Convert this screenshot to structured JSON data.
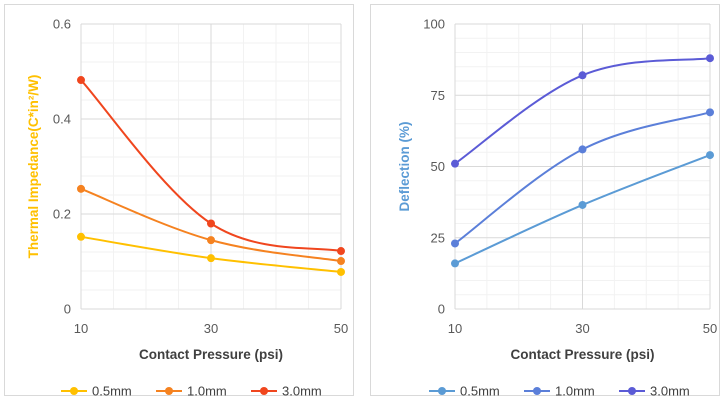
{
  "chart_data": [
    {
      "type": "line",
      "xlabel": "Contact Pressure (psi)",
      "ylabel": "Thermal Impedance(C*in²/W)",
      "ylabel_color": "#FFC000",
      "x": [
        10,
        30,
        50
      ],
      "x_ticks": [
        "10",
        "30",
        "50"
      ],
      "xlim": [
        10,
        50
      ],
      "ylim": [
        0,
        0.6
      ],
      "y_ticks": [
        0,
        0.2,
        0.4,
        0.6
      ],
      "y_tick_labels": [
        "0",
        "0.2",
        "0.4",
        "0.6"
      ],
      "grid": true,
      "legend_position": "bottom",
      "series": [
        {
          "name": "0.5mm",
          "color": "#FFC000",
          "values": [
            0.152,
            0.107,
            0.078
          ]
        },
        {
          "name": "1.0mm",
          "color": "#F58220",
          "values": [
            0.253,
            0.145,
            0.101
          ]
        },
        {
          "name": "3.0mm",
          "color": "#F0461E",
          "values": [
            0.482,
            0.18,
            0.122
          ]
        }
      ]
    },
    {
      "type": "line",
      "xlabel": "Contact Pressure (psi)",
      "ylabel": "Deflection (%)",
      "ylabel_color": "#5B9BD5",
      "x": [
        10,
        30,
        50
      ],
      "x_ticks": [
        "10",
        "30",
        "50"
      ],
      "xlim": [
        10,
        50
      ],
      "ylim": [
        0,
        100
      ],
      "y_ticks": [
        0,
        25,
        50,
        75,
        100
      ],
      "y_tick_labels": [
        "0",
        "25",
        "50",
        "75",
        "100"
      ],
      "grid": true,
      "legend_position": "bottom",
      "series": [
        {
          "name": "0.5mm",
          "color": "#5B9BD5",
          "values": [
            16,
            36.5,
            54
          ]
        },
        {
          "name": "1.0mm",
          "color": "#5B7FD9",
          "values": [
            23,
            56,
            69
          ]
        },
        {
          "name": "3.0mm",
          "color": "#5B5BD6",
          "values": [
            51,
            82,
            88
          ]
        }
      ]
    }
  ]
}
